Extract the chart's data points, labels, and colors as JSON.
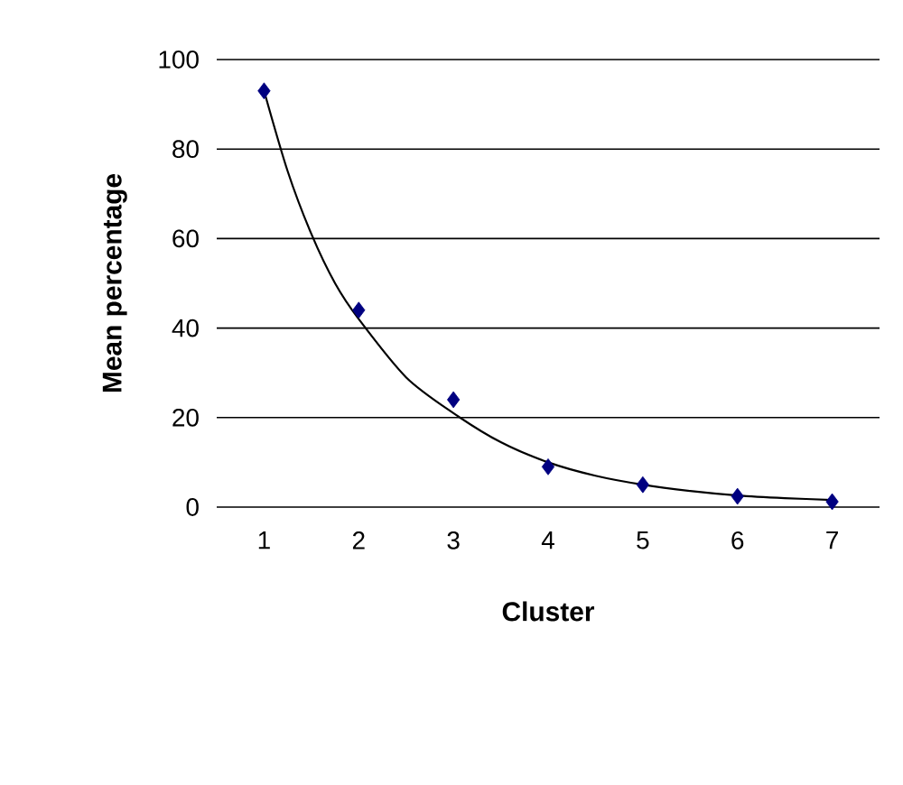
{
  "chart_data": {
    "type": "scatter",
    "xlabel": "Cluster",
    "ylabel": "Mean percentage",
    "xlim": [
      0.5,
      7.5
    ],
    "xticks": [
      1,
      2,
      3,
      4,
      5,
      6,
      7
    ],
    "ylim": [
      0,
      100
    ],
    "yticks": [
      0,
      20,
      40,
      60,
      80,
      100
    ],
    "grid": "y",
    "series": [
      {
        "marker": "diamond",
        "color": "#000080",
        "x": [
          1,
          2,
          3,
          4,
          5,
          6,
          7
        ],
        "values": [
          93,
          44,
          24,
          9,
          5,
          2.4,
          1.2
        ]
      },
      {
        "type": "line",
        "color": "#000000",
        "line_style": "solid",
        "x": [
          1,
          1.25,
          1.5,
          1.75,
          2,
          2.5,
          3,
          3.5,
          4,
          4.5,
          5,
          5.5,
          6,
          6.5,
          7
        ],
        "values": [
          93,
          75,
          61,
          50,
          42,
          29,
          21,
          14.5,
          10,
          7,
          5,
          3.6,
          2.6,
          2,
          1.6
        ]
      }
    ]
  }
}
